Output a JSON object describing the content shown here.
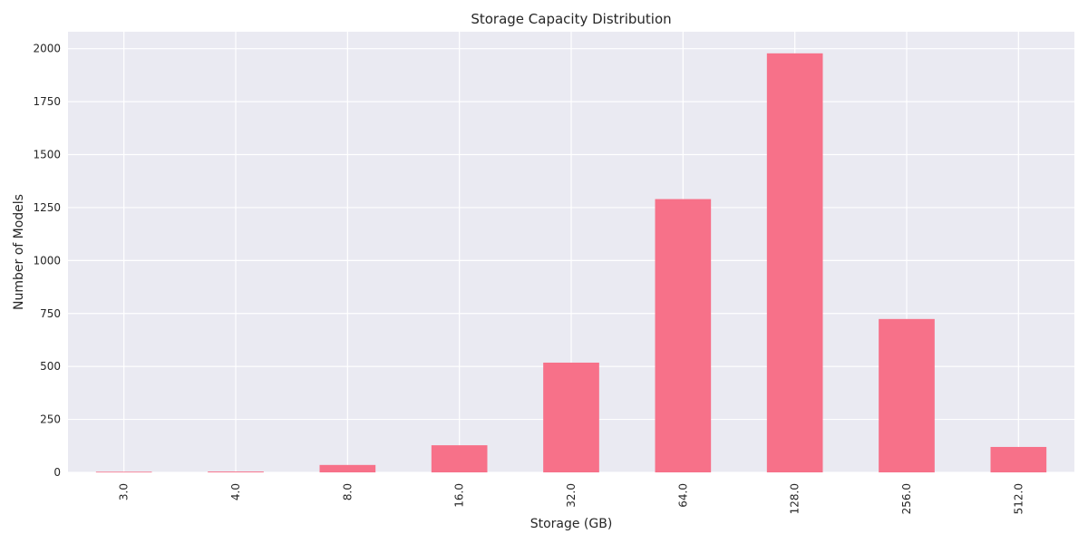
{
  "chart_data": {
    "type": "bar",
    "title": "Storage Capacity Distribution",
    "xlabel": "Storage (GB)",
    "ylabel": "Number of Models",
    "categories": [
      "3.0",
      "4.0",
      "8.0",
      "16.0",
      "32.0",
      "64.0",
      "128.0",
      "256.0",
      "512.0"
    ],
    "values": [
      3,
      4,
      35,
      128,
      518,
      1290,
      1978,
      724,
      120
    ],
    "ylim": [
      0,
      2080
    ],
    "yticks": [
      "0",
      "250",
      "500",
      "750",
      "1000",
      "1250",
      "1500",
      "1750",
      "2000"
    ],
    "grid": true,
    "bar_color": "#f77189",
    "background_color": "#eaeaf2",
    "grid_color": "#ffffff"
  }
}
